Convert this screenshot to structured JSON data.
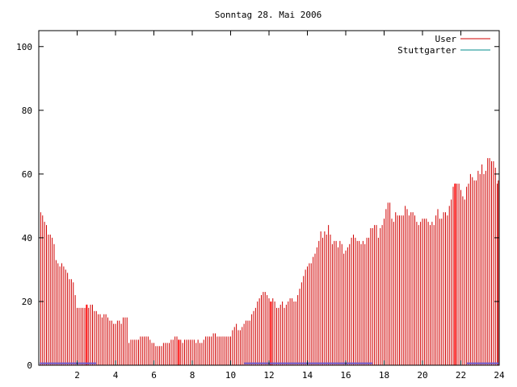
{
  "chart_data": {
    "type": "bar",
    "title": "Sonntag 28. Mai 2006",
    "xlabel": "",
    "ylabel": "",
    "xlim": [
      0,
      24
    ],
    "ylim": [
      0,
      105
    ],
    "x_ticks": [
      2,
      4,
      6,
      8,
      10,
      12,
      14,
      16,
      18,
      20,
      22,
      24
    ],
    "y_ticks": [
      0,
      20,
      40,
      60,
      80,
      100
    ],
    "x_tick_labels": [
      "2",
      "4",
      "6",
      "8",
      "10",
      "12",
      "14",
      "16",
      "18",
      "20",
      "22",
      "24"
    ],
    "y_tick_labels": [
      "0",
      "20",
      "40",
      "60",
      "80",
      "100"
    ],
    "grid": false,
    "legend_position": "top-right",
    "series": [
      {
        "name": "User",
        "color": "#d00000",
        "style": "impulses",
        "points": [
          [
            0.1,
            48
          ],
          [
            0.2,
            47
          ],
          [
            0.3,
            45
          ],
          [
            0.4,
            44
          ],
          [
            0.5,
            41
          ],
          [
            0.6,
            41
          ],
          [
            0.7,
            40
          ],
          [
            0.8,
            38
          ],
          [
            0.9,
            33
          ],
          [
            1.0,
            32
          ],
          [
            1.1,
            31
          ],
          [
            1.2,
            32
          ],
          [
            1.3,
            31
          ],
          [
            1.4,
            30
          ],
          [
            1.5,
            29
          ],
          [
            1.6,
            27
          ],
          [
            1.7,
            27
          ],
          [
            1.8,
            26
          ],
          [
            1.9,
            22
          ],
          [
            2.0,
            18
          ],
          [
            2.1,
            18
          ],
          [
            2.2,
            18
          ],
          [
            2.3,
            18
          ],
          [
            2.4,
            18
          ],
          [
            2.5,
            19
          ],
          [
            2.6,
            18
          ],
          [
            2.7,
            19
          ],
          [
            2.8,
            19
          ],
          [
            2.9,
            17
          ],
          [
            3.0,
            17
          ],
          [
            3.1,
            16
          ],
          [
            3.2,
            16
          ],
          [
            3.3,
            15
          ],
          [
            3.4,
            16
          ],
          [
            3.5,
            16
          ],
          [
            3.6,
            15
          ],
          [
            3.7,
            14
          ],
          [
            3.8,
            14
          ],
          [
            3.9,
            13
          ],
          [
            4.0,
            13
          ],
          [
            4.1,
            14
          ],
          [
            4.2,
            14
          ],
          [
            4.3,
            13
          ],
          [
            4.4,
            15
          ],
          [
            4.5,
            15
          ],
          [
            4.6,
            15
          ],
          [
            4.7,
            7
          ],
          [
            4.8,
            8
          ],
          [
            4.9,
            8
          ],
          [
            5.0,
            8
          ],
          [
            5.1,
            8
          ],
          [
            5.2,
            8
          ],
          [
            5.3,
            9
          ],
          [
            5.4,
            9
          ],
          [
            5.5,
            9
          ],
          [
            5.6,
            9
          ],
          [
            5.7,
            9
          ],
          [
            5.8,
            8
          ],
          [
            5.9,
            7
          ],
          [
            6.0,
            7
          ],
          [
            6.1,
            6
          ],
          [
            6.2,
            6
          ],
          [
            6.3,
            6
          ],
          [
            6.4,
            6
          ],
          [
            6.5,
            7
          ],
          [
            6.6,
            7
          ],
          [
            6.7,
            7
          ],
          [
            6.8,
            7
          ],
          [
            6.9,
            8
          ],
          [
            7.0,
            8
          ],
          [
            7.1,
            9
          ],
          [
            7.2,
            9
          ],
          [
            7.3,
            8
          ],
          [
            7.4,
            8
          ],
          [
            7.5,
            7
          ],
          [
            7.6,
            8
          ],
          [
            7.7,
            8
          ],
          [
            7.8,
            8
          ],
          [
            7.9,
            8
          ],
          [
            8.0,
            8
          ],
          [
            8.1,
            8
          ],
          [
            8.2,
            7
          ],
          [
            8.3,
            8
          ],
          [
            8.4,
            7
          ],
          [
            8.5,
            7
          ],
          [
            8.6,
            8
          ],
          [
            8.7,
            9
          ],
          [
            8.8,
            9
          ],
          [
            8.9,
            9
          ],
          [
            9.0,
            9
          ],
          [
            9.1,
            10
          ],
          [
            9.2,
            10
          ],
          [
            9.3,
            9
          ],
          [
            9.4,
            9
          ],
          [
            9.5,
            9
          ],
          [
            9.6,
            9
          ],
          [
            9.7,
            9
          ],
          [
            9.8,
            9
          ],
          [
            9.9,
            9
          ],
          [
            10.0,
            9
          ],
          [
            10.1,
            11
          ],
          [
            10.2,
            12
          ],
          [
            10.3,
            13
          ],
          [
            10.4,
            11
          ],
          [
            10.5,
            11
          ],
          [
            10.6,
            12
          ],
          [
            10.7,
            13
          ],
          [
            10.8,
            14
          ],
          [
            10.9,
            14
          ],
          [
            11.0,
            14
          ],
          [
            11.1,
            16
          ],
          [
            11.2,
            17
          ],
          [
            11.3,
            18
          ],
          [
            11.4,
            20
          ],
          [
            11.5,
            21
          ],
          [
            11.6,
            22
          ],
          [
            11.7,
            23
          ],
          [
            11.8,
            23
          ],
          [
            11.9,
            22
          ],
          [
            12.0,
            21
          ],
          [
            12.1,
            20
          ],
          [
            12.2,
            21
          ],
          [
            12.3,
            20
          ],
          [
            12.4,
            18
          ],
          [
            12.5,
            18
          ],
          [
            12.6,
            19
          ],
          [
            12.7,
            20
          ],
          [
            12.8,
            18
          ],
          [
            12.9,
            19
          ],
          [
            13.0,
            20
          ],
          [
            13.1,
            21
          ],
          [
            13.2,
            21
          ],
          [
            13.3,
            20
          ],
          [
            13.4,
            20
          ],
          [
            13.5,
            22
          ],
          [
            13.6,
            24
          ],
          [
            13.7,
            26
          ],
          [
            13.8,
            28
          ],
          [
            13.9,
            30
          ],
          [
            14.0,
            31
          ],
          [
            14.1,
            32
          ],
          [
            14.2,
            32
          ],
          [
            14.3,
            34
          ],
          [
            14.4,
            35
          ],
          [
            14.5,
            37
          ],
          [
            14.6,
            39
          ],
          [
            14.7,
            42
          ],
          [
            14.8,
            40
          ],
          [
            14.9,
            42
          ],
          [
            15.0,
            41
          ],
          [
            15.1,
            44
          ],
          [
            15.2,
            41
          ],
          [
            15.3,
            38
          ],
          [
            15.4,
            39
          ],
          [
            15.5,
            39
          ],
          [
            15.6,
            37
          ],
          [
            15.7,
            39
          ],
          [
            15.8,
            38
          ],
          [
            15.9,
            35
          ],
          [
            16.0,
            36
          ],
          [
            16.1,
            37
          ],
          [
            16.2,
            38
          ],
          [
            16.3,
            40
          ],
          [
            16.4,
            41
          ],
          [
            16.5,
            40
          ],
          [
            16.6,
            39
          ],
          [
            16.7,
            39
          ],
          [
            16.8,
            38
          ],
          [
            16.9,
            39
          ],
          [
            17.0,
            38
          ],
          [
            17.1,
            40
          ],
          [
            17.2,
            40
          ],
          [
            17.3,
            43
          ],
          [
            17.4,
            43
          ],
          [
            17.5,
            44
          ],
          [
            17.6,
            44
          ],
          [
            17.7,
            40
          ],
          [
            17.8,
            43
          ],
          [
            17.9,
            44
          ],
          [
            18.0,
            46
          ],
          [
            18.1,
            49
          ],
          [
            18.2,
            51
          ],
          [
            18.3,
            51
          ],
          [
            18.4,
            46
          ],
          [
            18.5,
            45
          ],
          [
            18.6,
            48
          ],
          [
            18.7,
            47
          ],
          [
            18.8,
            47
          ],
          [
            18.9,
            47
          ],
          [
            19.0,
            47
          ],
          [
            19.1,
            50
          ],
          [
            19.2,
            49
          ],
          [
            19.3,
            47
          ],
          [
            19.4,
            48
          ],
          [
            19.5,
            48
          ],
          [
            19.6,
            47
          ],
          [
            19.7,
            45
          ],
          [
            19.8,
            44
          ],
          [
            19.9,
            45
          ],
          [
            20.0,
            46
          ],
          [
            20.1,
            46
          ],
          [
            20.2,
            46
          ],
          [
            20.3,
            45
          ],
          [
            20.4,
            44
          ],
          [
            20.5,
            45
          ],
          [
            20.6,
            44
          ],
          [
            20.7,
            47
          ],
          [
            20.8,
            49
          ],
          [
            20.9,
            46
          ],
          [
            21.0,
            46
          ],
          [
            21.1,
            48
          ],
          [
            21.2,
            48
          ],
          [
            21.3,
            47
          ],
          [
            21.4,
            50
          ],
          [
            21.5,
            52
          ],
          [
            21.6,
            56
          ],
          [
            21.7,
            57
          ],
          [
            21.8,
            57
          ],
          [
            21.9,
            57
          ],
          [
            22.0,
            55
          ],
          [
            22.1,
            53
          ],
          [
            22.2,
            52
          ],
          [
            22.3,
            56
          ],
          [
            22.4,
            57
          ],
          [
            22.5,
            60
          ],
          [
            22.6,
            59
          ],
          [
            22.7,
            58
          ],
          [
            22.8,
            58
          ],
          [
            22.9,
            61
          ],
          [
            23.0,
            60
          ],
          [
            23.1,
            63
          ],
          [
            23.2,
            60
          ],
          [
            23.3,
            61
          ],
          [
            23.4,
            65
          ],
          [
            23.5,
            65
          ],
          [
            23.6,
            64
          ],
          [
            23.7,
            64
          ],
          [
            23.8,
            62
          ],
          [
            23.9,
            57
          ],
          [
            23.95,
            58
          ]
        ]
      },
      {
        "name": "Stuttgarter",
        "color": "#008b8b",
        "style": "impulses",
        "points": []
      }
    ],
    "red_emphasis_x": [
      2.5,
      7.3,
      12.1,
      21.7
    ]
  }
}
